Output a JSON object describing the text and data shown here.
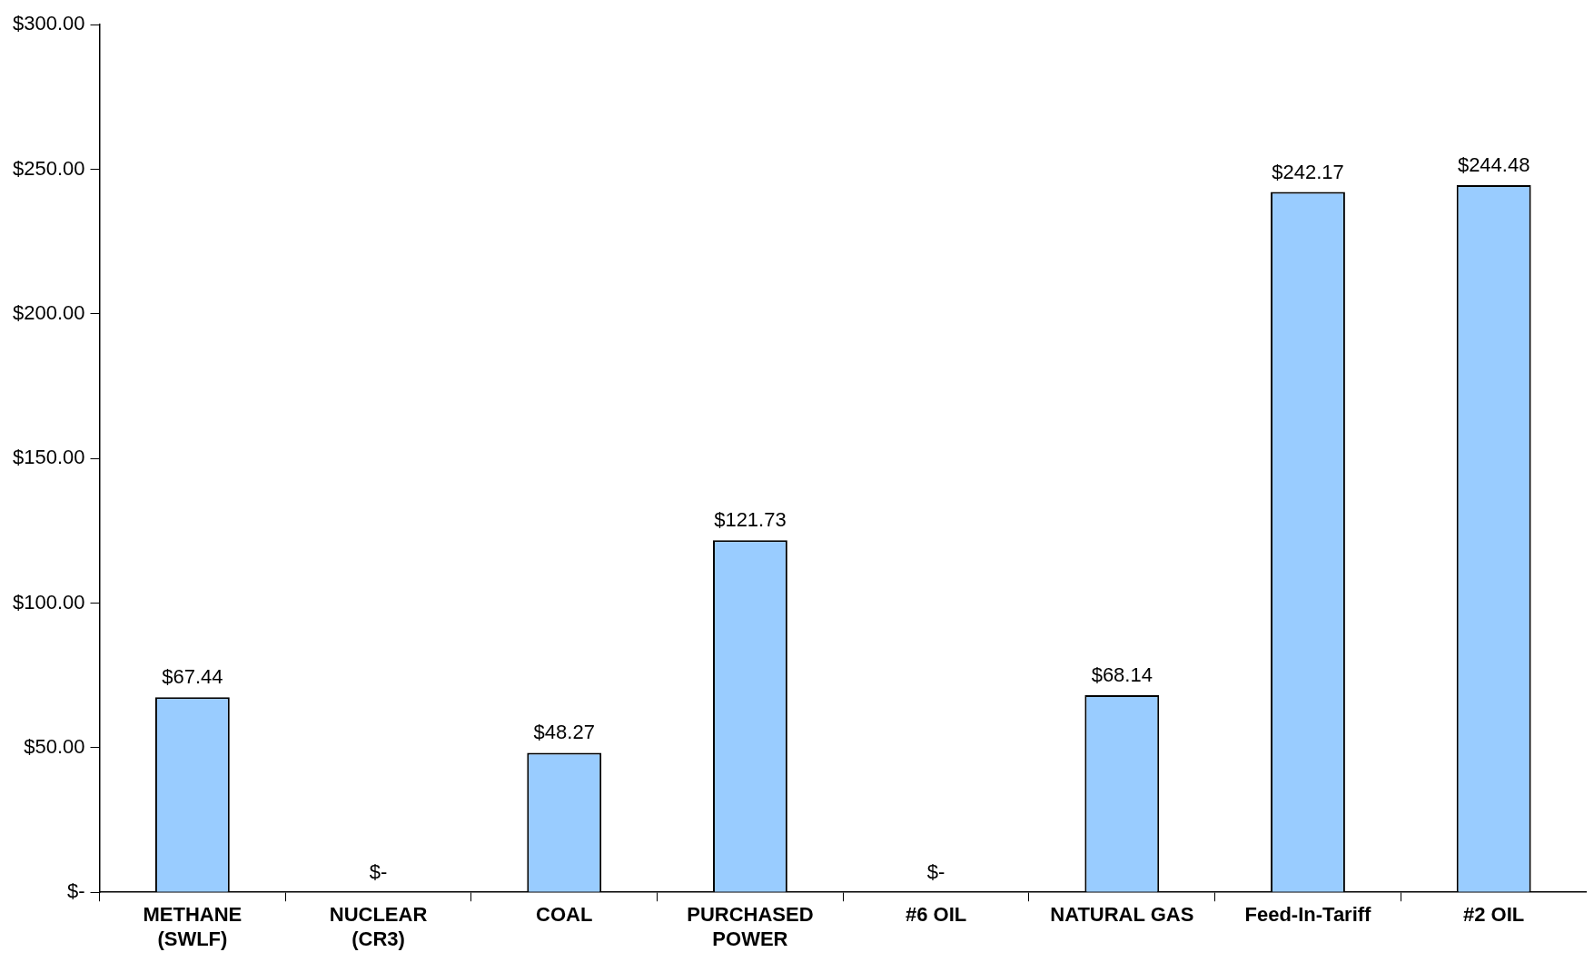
{
  "chart_data": {
    "type": "bar",
    "categories": [
      "METHANE\n(SWLF)",
      "NUCLEAR\n(CR3)",
      "COAL",
      "PURCHASED\nPOWER",
      "#6 OIL",
      "NATURAL GAS",
      "Feed-In-Tariff",
      "#2 OIL"
    ],
    "values": [
      67.44,
      0,
      48.27,
      121.73,
      0,
      68.14,
      242.17,
      244.48
    ],
    "value_labels": [
      "$67.44",
      "$-",
      "$48.27",
      "$121.73",
      "$-",
      "$68.14",
      "$242.17",
      "$244.48"
    ],
    "color": "#99ccff",
    "ylim": [
      0,
      300
    ],
    "yticks": [
      {
        "value": 0,
        "label": "$-"
      },
      {
        "value": 50,
        "label": "$50.00"
      },
      {
        "value": 100,
        "label": "$100.00"
      },
      {
        "value": 150,
        "label": "$150.00"
      },
      {
        "value": 200,
        "label": "$200.00"
      },
      {
        "value": 250,
        "label": "$250.00"
      },
      {
        "value": 300,
        "label": "$300.00"
      }
    ],
    "grid": false,
    "legend": false
  }
}
